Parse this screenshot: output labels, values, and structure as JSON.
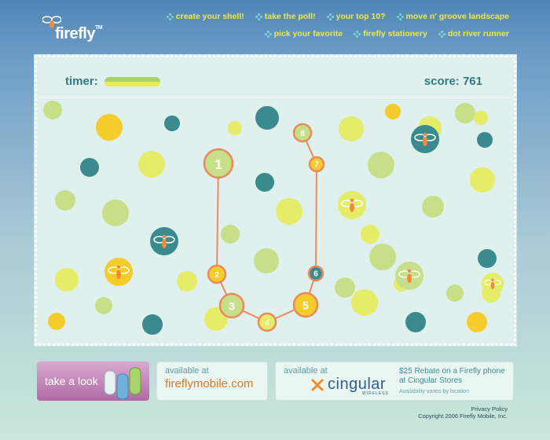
{
  "header": {
    "logo_text": "firefly",
    "logo_tm": "TM",
    "nav_row1": [
      "create your shell!",
      "take the poll!",
      "your top 10?",
      "move n' groove landscape"
    ],
    "nav_row2": [
      "pick your favorite",
      "firefly stationery",
      "dot river runner"
    ]
  },
  "game": {
    "timer_label": "timer:",
    "score_label": "score:",
    "score_value": "761",
    "timer_level": 0.85
  },
  "colors": {
    "teal": "#3b8a8e",
    "yellow": "#f4cc2c",
    "light_green": "#c6df88",
    "lime": "#e4ec68",
    "path_orange": "#ea8a5c",
    "board_bg": "#e0f0ec"
  },
  "footer": {
    "take_a_look": "take a look",
    "available_at": "available at",
    "fireflymobile": "fireflymobile.com",
    "cingular_available": "available at",
    "cingular_brand": "cingular",
    "cingular_sub": "WIRELESS",
    "rebate": "$25 Rebate on a Firefly phone at Cingular Stores",
    "availability": "Availability varies by location",
    "privacy": "Privacy Policy",
    "copyright": "Copyright 2006 Firefly Mobile, Inc."
  }
}
